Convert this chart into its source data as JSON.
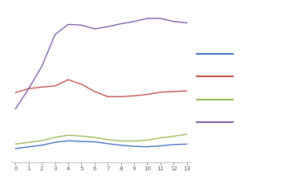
{
  "background_color": "#ffffff",
  "plot_bg_color": "#ffffff",
  "grid_color": "#cccccc",
  "x_ticks": [
    0,
    1,
    2,
    3,
    4,
    5,
    6,
    7,
    8,
    9,
    10,
    11,
    12,
    13
  ],
  "series": {
    "blue": {
      "color": "#4472c4",
      "values": [
        310,
        318,
        325,
        338,
        345,
        342,
        340,
        332,
        325,
        320,
        318,
        322,
        328,
        330
      ]
    },
    "red": {
      "color": "#c0504d",
      "values": [
        560,
        578,
        585,
        590,
        618,
        598,
        565,
        542,
        542,
        546,
        552,
        562,
        565,
        568
      ]
    },
    "green": {
      "color": "#9bbb59",
      "values": [
        330,
        338,
        346,
        360,
        370,
        366,
        360,
        350,
        344,
        344,
        348,
        358,
        365,
        374
      ]
    },
    "purple": {
      "color": "#7b5ea7",
      "values": [
        488,
        578,
        678,
        820,
        865,
        862,
        845,
        855,
        868,
        878,
        892,
        892,
        878,
        872
      ]
    }
  },
  "legend_order": [
    "blue",
    "red",
    "green",
    "purple"
  ],
  "ylim": [
    250,
    950
  ],
  "xlim": [
    -0.3,
    13.3
  ],
  "spine_color": "#aaaaaa",
  "tick_color": "#555555",
  "tick_labelsize": 5,
  "line_width": 1.0
}
